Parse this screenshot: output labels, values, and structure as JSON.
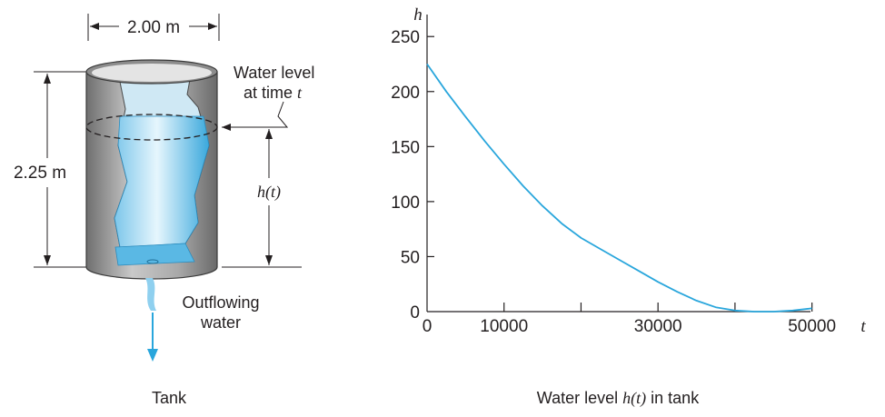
{
  "left_figure": {
    "width_label": "2.00 m",
    "height_label": "2.25 m",
    "water_level_line1": "Water level",
    "water_level_line2_prefix": "at time ",
    "water_level_line2_var": "t",
    "h_of_t_var": "h",
    "h_of_t_arg": "(t)",
    "outflow_line1": "Outflowing",
    "outflow_line2": "water",
    "caption": "Tank"
  },
  "chart_data": {
    "type": "line",
    "title": "",
    "xlabel": "t",
    "ylabel": "h",
    "xlim": [
      0,
      55000
    ],
    "ylim": [
      0,
      270
    ],
    "x_ticks": [
      0,
      10000,
      20000,
      30000,
      40000,
      50000
    ],
    "x_tick_labels": [
      "0",
      "10000",
      "",
      "30000",
      "",
      "50000"
    ],
    "y_ticks": [
      0,
      50,
      100,
      150,
      200,
      250
    ],
    "y_tick_labels": [
      "0",
      "50",
      "100",
      "150",
      "200",
      "250"
    ],
    "series": [
      {
        "color": "#29a6dc",
        "x": [
          0,
          2500,
          5000,
          7500,
          10000,
          12500,
          15000,
          17500,
          20000,
          22500,
          25000,
          27500,
          30000,
          32500,
          35000,
          37500,
          40000,
          42500,
          45000,
          47500,
          50000
        ],
        "y": [
          225,
          200,
          177,
          155,
          134,
          114,
          96,
          80,
          67,
          57,
          47,
          37,
          27,
          18,
          10,
          4,
          1,
          0,
          0,
          1,
          3
        ]
      }
    ],
    "caption_prefix": "Water level ",
    "caption_var": "h",
    "caption_arg": "(t)",
    "caption_suffix": " in tank"
  },
  "colors": {
    "water": "#29a6dc",
    "axis": "#231f20",
    "tank_metal": "#9a9a9a"
  }
}
